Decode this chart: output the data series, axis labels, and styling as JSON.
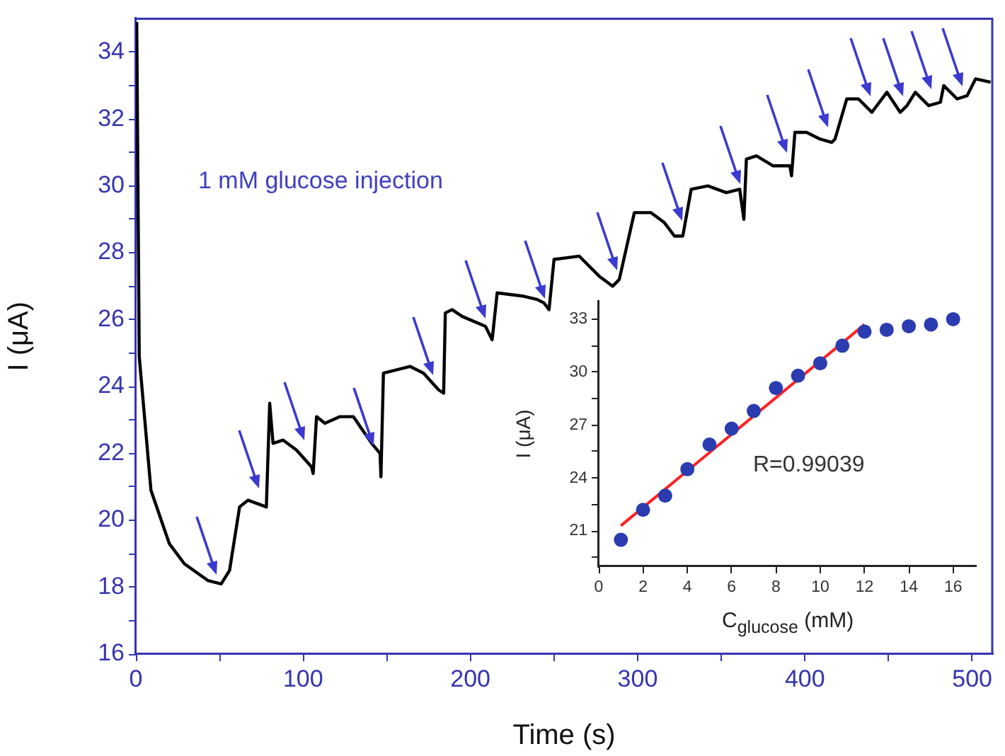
{
  "chart_data": [
    {
      "type": "line",
      "xlabel": "Time (s)",
      "ylabel": "I (μA)",
      "xlim": [
        0,
        512
      ],
      "ylim": [
        16,
        35
      ],
      "xticks": [
        0,
        {
          "value": 50,
          "label": null
        },
        100,
        {
          "value": 150,
          "label": null
        },
        200,
        {
          "value": 250,
          "label": null
        },
        300,
        {
          "value": 350,
          "label": null
        },
        400,
        {
          "value": 450,
          "label": null
        },
        500
      ],
      "yticks": [
        16,
        {
          "value": 17,
          "label": null
        },
        18,
        {
          "value": 19,
          "label": null
        },
        20,
        {
          "value": 21,
          "label": null
        },
        22,
        {
          "value": 23,
          "label": null
        },
        24,
        {
          "value": 25,
          "label": null
        },
        26,
        {
          "value": 27,
          "label": null
        },
        28,
        {
          "value": 29,
          "label": null
        },
        30,
        {
          "value": 31,
          "label": null
        },
        32,
        {
          "value": 33,
          "label": null
        },
        34
      ],
      "annotations": [
        "1 mM glucose injection"
      ],
      "series": [
        {
          "color": "#000000",
          "x": [
            0.5,
            2,
            9,
            20,
            29,
            43,
            51,
            56,
            62,
            67,
            78,
            80,
            82,
            88,
            96,
            105,
            106,
            108,
            113,
            122,
            130,
            141,
            146,
            146.5,
            148,
            156,
            164,
            172,
            181,
            184,
            185,
            189,
            195,
            209,
            213,
            216,
            232,
            240,
            244,
            247,
            250,
            265,
            277,
            285,
            289,
            298,
            308,
            316,
            322,
            327,
            332,
            342,
            353,
            361,
            363.5,
            365,
            371,
            381,
            391,
            392,
            394,
            401,
            409,
            416,
            418,
            425,
            432,
            440,
            443,
            449,
            457,
            461,
            466,
            474,
            481,
            483,
            491,
            497,
            502,
            511
          ],
          "values": [
            34.9,
            24.9,
            20.9,
            19.3,
            18.7,
            18.2,
            18.1,
            18.5,
            20.4,
            20.6,
            20.4,
            23.5,
            22.3,
            22.4,
            22.1,
            21.6,
            21.4,
            23.1,
            22.9,
            23.1,
            23.1,
            22.3,
            22.0,
            21.3,
            24.4,
            24.5,
            24.6,
            24.4,
            23.9,
            23.8,
            26.2,
            26.3,
            26.1,
            25.8,
            25.4,
            26.8,
            26.7,
            26.6,
            26.5,
            26.3,
            27.8,
            27.9,
            27.3,
            27.0,
            27.2,
            29.2,
            29.2,
            28.9,
            28.5,
            28.5,
            29.9,
            30.0,
            29.8,
            29.9,
            29.0,
            30.8,
            30.9,
            30.6,
            30.6,
            30.3,
            31.6,
            31.6,
            31.4,
            31.3,
            31.4,
            32.6,
            32.6,
            32.2,
            32.4,
            32.8,
            32.2,
            32.4,
            32.8,
            32.4,
            32.5,
            33.0,
            32.6,
            32.7,
            33.2,
            33.1
          ]
        }
      ]
    },
    {
      "type": "scatter",
      "xlabel": "C$_{glucose}$ (mM)",
      "ylabel": "I (μA)",
      "xlim": [
        0,
        17
      ],
      "ylim": [
        19,
        34
      ],
      "xticks": [
        0,
        2,
        4,
        6,
        8,
        10,
        12,
        14,
        16
      ],
      "yticks": [
        {
          "value": 19.5,
          "label": null
        },
        21,
        {
          "value": 22.5,
          "label": null
        },
        24,
        {
          "value": 25.5,
          "label": null
        },
        27,
        {
          "value": 28.5,
          "label": null
        },
        30,
        {
          "value": 31.5,
          "label": null
        },
        33
      ],
      "annotations": [
        "R=0.99039"
      ],
      "series": [
        {
          "type": "scatter",
          "color": "#2b3bb0",
          "marker": "circle",
          "x": [
            1,
            2,
            3,
            4,
            5,
            6,
            7,
            8,
            9,
            10,
            11,
            12,
            13,
            14,
            15,
            16
          ],
          "values": [
            20.5,
            22.2,
            23.0,
            24.5,
            25.9,
            26.8,
            27.8,
            29.1,
            29.8,
            30.5,
            31.5,
            32.3,
            32.4,
            32.6,
            32.7,
            33.0
          ]
        },
        {
          "type": "line",
          "color": "#ff2020",
          "x": [
            1,
            12
          ],
          "values": [
            21.3,
            32.7
          ]
        }
      ]
    }
  ]
}
